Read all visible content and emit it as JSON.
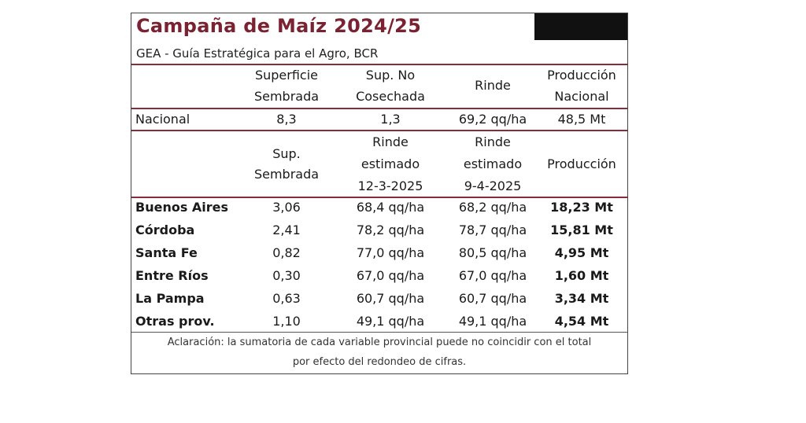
{
  "title": "Campaña de Maíz 2024/25",
  "subtitle": "GEA - Guía Estratégica para el Agro, BCR",
  "national_header": {
    "sup_line1": "Superficie",
    "sup_line2": "Sembrada",
    "no_line1": "Sup. No",
    "no_line2": "Cosechada",
    "rinde": "Rinde",
    "prod_line1": "Producción",
    "prod_line2": "Nacional"
  },
  "national_row": {
    "name": "Nacional",
    "sup": "8,3",
    "no": "1,3",
    "rinde": "69,2 qq/ha",
    "prod": "48,5 Mt"
  },
  "prov_header": {
    "sup_line1": "Sup.",
    "sup_line2": "Sembrada",
    "r1_line1": "Rinde",
    "r1_line2": "estimado",
    "r1_line3": "12-3-2025",
    "r2_line1": "Rinde",
    "r2_line2": "estimado",
    "r2_line3": "9-4-2025",
    "prod": "Producción"
  },
  "provinces": [
    {
      "name": "Buenos Aires",
      "sup": "3,06",
      "r1": "68,4 qq/ha",
      "r2": "68,2 qq/ha",
      "prod": "18,23 Mt"
    },
    {
      "name": "Córdoba",
      "sup": "2,41",
      "r1": "78,2 qq/ha",
      "r2": "78,7 qq/ha",
      "prod": "15,81 Mt"
    },
    {
      "name": "Santa Fe",
      "sup": "0,82",
      "r1": "77,0 qq/ha",
      "r2": "80,5 qq/ha",
      "prod": "4,95 Mt"
    },
    {
      "name": "Entre Ríos",
      "sup": "0,30",
      "r1": "67,0 qq/ha",
      "r2": "67,0 qq/ha",
      "prod": "1,60 Mt"
    },
    {
      "name": "La Pampa",
      "sup": "0,63",
      "r1": "60,7 qq/ha",
      "r2": "60,7 qq/ha",
      "prod": "3,34 Mt"
    },
    {
      "name": "Otras prov.",
      "sup": "1,10",
      "r1": "49,1 qq/ha",
      "r2": "49,1 qq/ha",
      "prod": "4,54 Mt"
    }
  ],
  "note_line1": "Aclaración: la sumatoria de cada variable provincial puede no coincidir con el total",
  "note_line2": "por efecto del redondeo de cifras.",
  "colors": {
    "title": "#7b2232",
    "rule": "#8a2a3a"
  }
}
